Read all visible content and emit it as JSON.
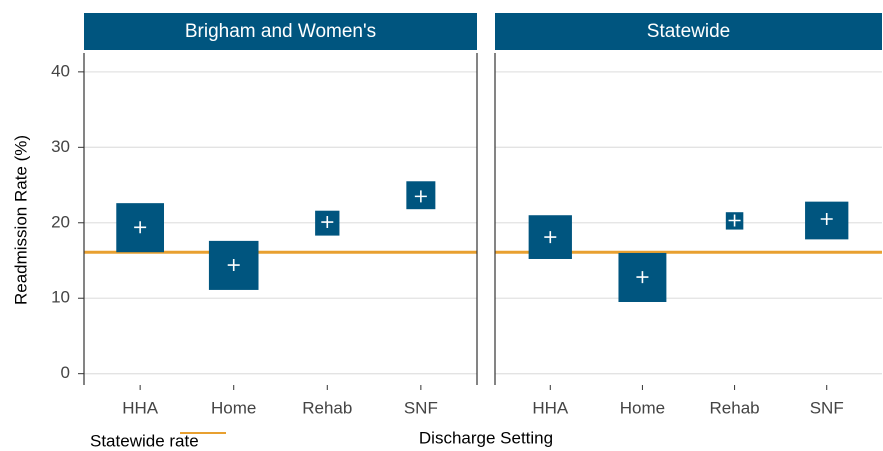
{
  "chart_data": {
    "type": "crossbar",
    "ylabel": "Readmission Rate (%)",
    "xlabel": "Discharge Setting",
    "categories": [
      "HHA",
      "Home",
      "Rehab",
      "SNF"
    ],
    "ylim": [
      -1.5,
      42.5
    ],
    "yticks": [
      0,
      10,
      20,
      30,
      40
    ],
    "grid": true,
    "color": "#00557f",
    "reference": {
      "name": "Statewide rate",
      "value": 16.1,
      "color": "#e8a030"
    },
    "panels": [
      {
        "title": "Brigham and Women's",
        "values": [
          19.4,
          14.4,
          20.1,
          23.5
        ],
        "low": [
          16.1,
          11.1,
          18.3,
          21.8
        ],
        "high": [
          22.6,
          17.6,
          21.6,
          25.5
        ],
        "widths": [
          0.51,
          0.53,
          0.26,
          0.31
        ]
      },
      {
        "title": "Statewide",
        "values": [
          18.1,
          12.8,
          20.3,
          20.5
        ],
        "low": [
          15.2,
          9.5,
          19.1,
          17.8
        ],
        "high": [
          21.0,
          16.0,
          21.4,
          22.8
        ],
        "widths": [
          0.47,
          0.52,
          0.19,
          0.47
        ]
      }
    ]
  }
}
